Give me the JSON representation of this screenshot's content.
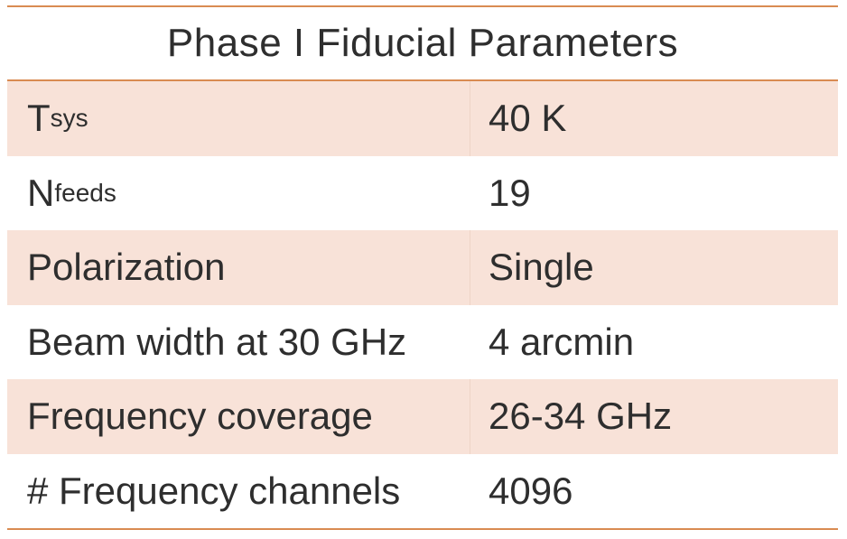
{
  "table": {
    "title": "Phase I Fiducial Parameters",
    "rows": [
      {
        "label": "T",
        "subscript": "sys",
        "value": "40 K"
      },
      {
        "label": "N",
        "subscript": "feeds",
        "value": "19"
      },
      {
        "label": "Polarization",
        "value": "Single"
      },
      {
        "label": "Beam width at 30 GHz",
        "value": "4 arcmin"
      },
      {
        "label": "Frequency coverage",
        "value": "26-34 GHz"
      },
      {
        "label": "# Frequency channels",
        "value": "4096"
      }
    ]
  }
}
